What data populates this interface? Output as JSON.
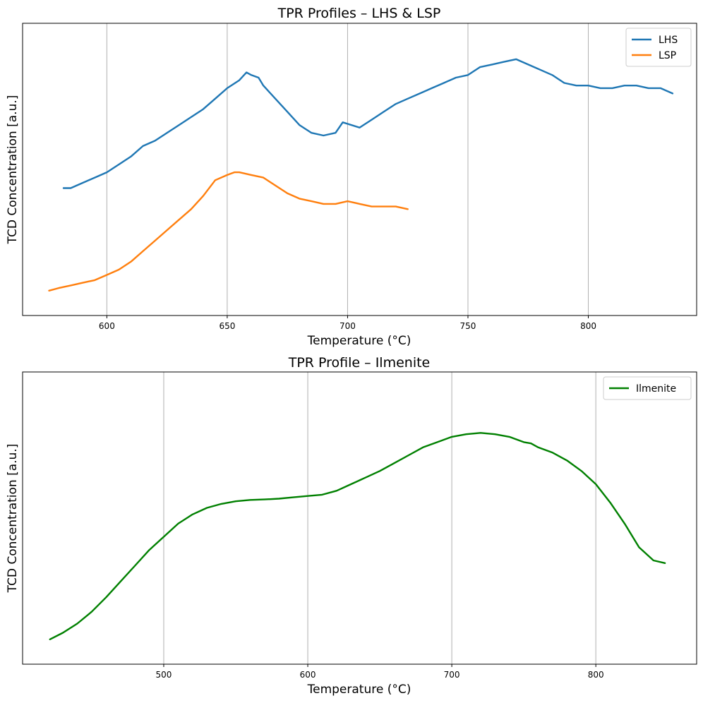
{
  "chart_data": [
    {
      "type": "line",
      "title": "TPR Profiles – LHS & LSP",
      "xlabel": "Temperature (°C)",
      "ylabel": "TCD Concentration [a.u.]",
      "xlim": [
        565,
        845
      ],
      "ylim": [
        0,
        1
      ],
      "xticks": [
        600,
        650,
        700,
        750,
        800
      ],
      "grid": "vertical",
      "legend_position": "top-right",
      "series": [
        {
          "name": "LHS",
          "color": "#1f77b4",
          "x": [
            582,
            585,
            590,
            595,
            600,
            605,
            610,
            615,
            620,
            625,
            630,
            635,
            640,
            645,
            650,
            655,
            658,
            660,
            663,
            665,
            670,
            675,
            680,
            685,
            690,
            695,
            698,
            705,
            710,
            715,
            720,
            725,
            730,
            735,
            740,
            745,
            750,
            755,
            760,
            765,
            770,
            775,
            780,
            785,
            790,
            795,
            800,
            805,
            810,
            815,
            820,
            825,
            830,
            835
          ],
          "y": [
            0.44,
            0.44,
            0.46,
            0.48,
            0.5,
            0.53,
            0.56,
            0.6,
            0.62,
            0.65,
            0.68,
            0.71,
            0.74,
            0.78,
            0.82,
            0.85,
            0.88,
            0.87,
            0.86,
            0.83,
            0.78,
            0.73,
            0.68,
            0.65,
            0.64,
            0.65,
            0.69,
            0.67,
            0.7,
            0.73,
            0.76,
            0.78,
            0.8,
            0.82,
            0.84,
            0.86,
            0.87,
            0.9,
            0.91,
            0.92,
            0.93,
            0.91,
            0.89,
            0.87,
            0.84,
            0.83,
            0.83,
            0.82,
            0.82,
            0.83,
            0.83,
            0.82,
            0.82,
            0.8
          ]
        },
        {
          "name": "LSP",
          "color": "#ff7f0e",
          "x": [
            576,
            580,
            585,
            590,
            595,
            600,
            605,
            610,
            615,
            620,
            625,
            630,
            635,
            640,
            645,
            650,
            653,
            655,
            660,
            665,
            670,
            675,
            680,
            685,
            690,
            695,
            700,
            705,
            710,
            715,
            720,
            725
          ],
          "y": [
            0.05,
            0.06,
            0.07,
            0.08,
            0.09,
            0.11,
            0.13,
            0.16,
            0.2,
            0.24,
            0.28,
            0.32,
            0.36,
            0.41,
            0.47,
            0.49,
            0.5,
            0.5,
            0.49,
            0.48,
            0.45,
            0.42,
            0.4,
            0.39,
            0.38,
            0.38,
            0.39,
            0.38,
            0.37,
            0.37,
            0.37,
            0.36
          ]
        }
      ]
    },
    {
      "type": "line",
      "title": "TPR Profile – Ilmenite",
      "xlabel": "Temperature (°C)",
      "ylabel": "TCD Concentration [a.u.]",
      "xlim": [
        402,
        870
      ],
      "ylim": [
        0,
        1
      ],
      "xticks": [
        500,
        600,
        700,
        800
      ],
      "grid": "vertical",
      "legend_position": "top-right",
      "series": [
        {
          "name": "Ilmenite",
          "color": "#008000",
          "x": [
            421,
            430,
            440,
            450,
            460,
            470,
            480,
            490,
            500,
            510,
            520,
            530,
            540,
            550,
            560,
            570,
            580,
            590,
            600,
            610,
            620,
            630,
            640,
            650,
            660,
            670,
            680,
            690,
            700,
            710,
            720,
            730,
            740,
            750,
            755,
            760,
            770,
            780,
            790,
            800,
            810,
            820,
            830,
            840,
            848
          ],
          "y": [
            0.05,
            0.075,
            0.11,
            0.155,
            0.21,
            0.27,
            0.33,
            0.39,
            0.44,
            0.49,
            0.525,
            0.55,
            0.565,
            0.575,
            0.58,
            0.582,
            0.585,
            0.59,
            0.595,
            0.6,
            0.615,
            0.64,
            0.665,
            0.69,
            0.72,
            0.75,
            0.78,
            0.8,
            0.82,
            0.83,
            0.835,
            0.83,
            0.82,
            0.8,
            0.795,
            0.78,
            0.76,
            0.73,
            0.69,
            0.64,
            0.57,
            0.49,
            0.4,
            0.35,
            0.34
          ]
        }
      ]
    }
  ]
}
